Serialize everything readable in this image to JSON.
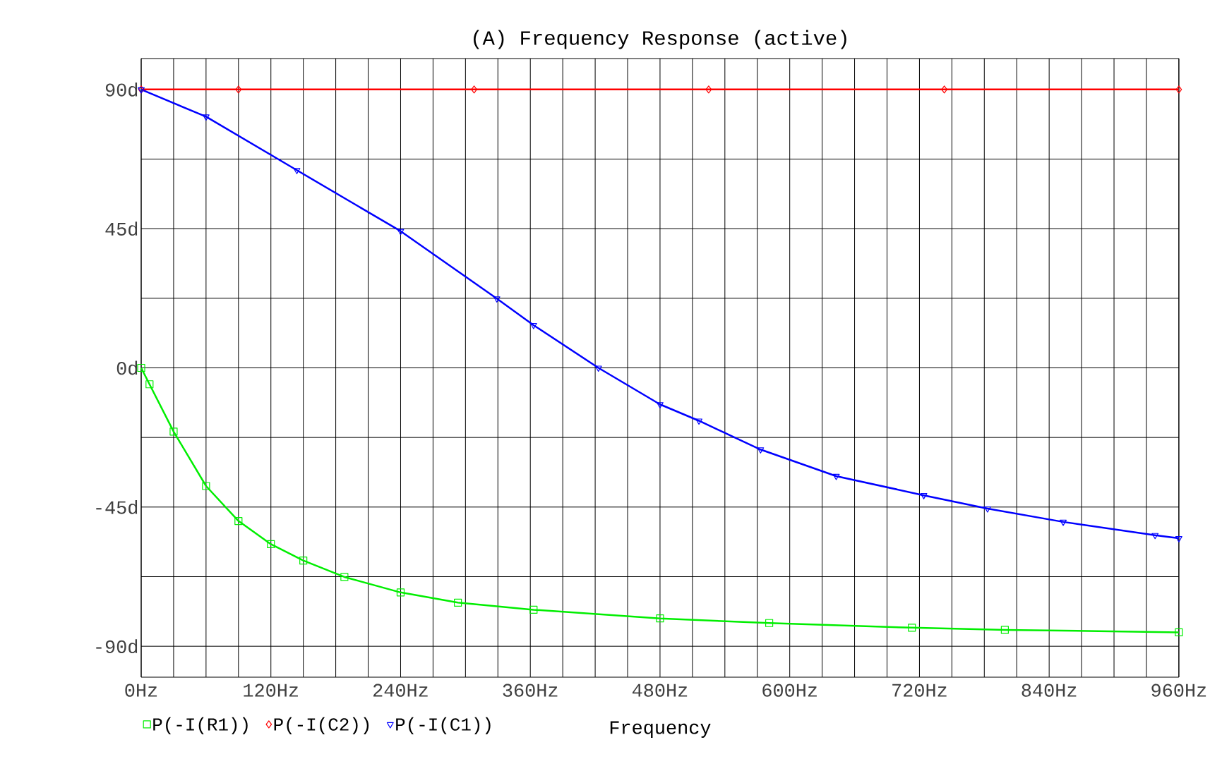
{
  "chart_data": {
    "type": "line",
    "title": "(A) Frequency Response (active)",
    "xlabel": "Frequency",
    "xlim": [
      0,
      960
    ],
    "ylim": [
      -100,
      100
    ],
    "xticks": [
      {
        "value": 0,
        "label": "0Hz"
      },
      {
        "value": 30,
        "label": null
      },
      {
        "value": 60,
        "label": null
      },
      {
        "value": 90,
        "label": null
      },
      {
        "value": 120,
        "label": "120Hz"
      },
      {
        "value": 150,
        "label": null
      },
      {
        "value": 180,
        "label": null
      },
      {
        "value": 210,
        "label": null
      },
      {
        "value": 240,
        "label": "240Hz"
      },
      {
        "value": 270,
        "label": null
      },
      {
        "value": 300,
        "label": null
      },
      {
        "value": 330,
        "label": null
      },
      {
        "value": 360,
        "label": "360Hz"
      },
      {
        "value": 390,
        "label": null
      },
      {
        "value": 420,
        "label": null
      },
      {
        "value": 450,
        "label": null
      },
      {
        "value": 480,
        "label": "480Hz"
      },
      {
        "value": 510,
        "label": null
      },
      {
        "value": 540,
        "label": null
      },
      {
        "value": 570,
        "label": null
      },
      {
        "value": 600,
        "label": "600Hz"
      },
      {
        "value": 630,
        "label": null
      },
      {
        "value": 660,
        "label": null
      },
      {
        "value": 690,
        "label": null
      },
      {
        "value": 720,
        "label": "720Hz"
      },
      {
        "value": 750,
        "label": null
      },
      {
        "value": 780,
        "label": null
      },
      {
        "value": 810,
        "label": null
      },
      {
        "value": 840,
        "label": "840Hz"
      },
      {
        "value": 870,
        "label": null
      },
      {
        "value": 900,
        "label": null
      },
      {
        "value": 930,
        "label": null
      },
      {
        "value": 960,
        "label": "960Hz"
      }
    ],
    "yticks": [
      {
        "value": -90,
        "label": "-90d"
      },
      {
        "value": -67.5,
        "label": null
      },
      {
        "value": -45,
        "label": "-45d"
      },
      {
        "value": -22.5,
        "label": null
      },
      {
        "value": 0,
        "label": "0d"
      },
      {
        "value": 22.5,
        "label": null
      },
      {
        "value": 45,
        "label": "45d"
      },
      {
        "value": 67.5,
        "label": null
      },
      {
        "value": 90,
        "label": "90d"
      }
    ],
    "grid": true,
    "legend": "bottom",
    "series": [
      {
        "name": "P(-I(R1))",
        "color": "#00ee00",
        "marker": "square",
        "x": [
          0,
          7.7,
          30,
          60,
          90,
          120,
          150,
          188,
          240,
          293,
          363,
          480,
          581,
          713,
          799,
          960
        ],
        "values": [
          0,
          -5.3,
          -20.6,
          -38.2,
          -49.5,
          -57,
          -62.3,
          -67.6,
          -72.6,
          -75.9,
          -78.2,
          -81,
          -82.5,
          -84,
          -84.7,
          -85.5
        ]
      },
      {
        "name": "P(-I(C2))",
        "color": "#ff0000",
        "marker": "diamond",
        "x": [
          0,
          90,
          308,
          525,
          743,
          960
        ],
        "values": [
          90,
          90,
          90,
          90,
          90,
          90
        ]
      },
      {
        "name": "P(-I(C1))",
        "color": "#0000ff",
        "marker": "triangle",
        "x": [
          0,
          60,
          144,
          240,
          329,
          363,
          423,
          480,
          516,
          573,
          643,
          724,
          783,
          853,
          938,
          960
        ],
        "values": [
          90,
          81.2,
          63.9,
          44.2,
          22.4,
          13.8,
          0,
          -11.8,
          -17.1,
          -26.4,
          -35,
          -41.2,
          -45.5,
          -49.8,
          -54.1,
          -55.1
        ]
      }
    ]
  }
}
